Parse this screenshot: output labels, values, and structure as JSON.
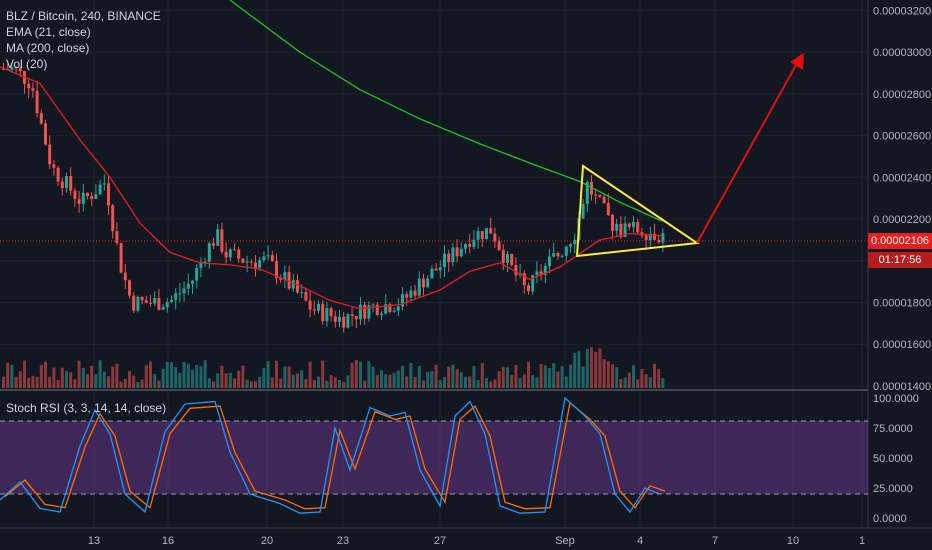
{
  "legend": {
    "symbol": "BLZ / Bitcoin, 240, BINANCE",
    "ema": "EMA (21, close)",
    "ma": "MA (200, close)",
    "vol": "Vol (20)"
  },
  "rsi_legend": "Stoch RSI (3, 3, 14, 14, close)",
  "current_price": "0.00002106",
  "countdown": "01:17:56",
  "colors": {
    "background": "#131722",
    "up": "#26a69a",
    "down": "#ef5350",
    "ema": "#e31e24",
    "ma": "#20c020",
    "triangle": "#ffeb3b",
    "arrow": "#e01010",
    "rsi_k": "#2196f3",
    "rsi_d": "#ff6d00",
    "rsi_band": "#7e3fa8"
  },
  "chart_data": [
    {
      "type": "candlestick",
      "title": "BLZ / Bitcoin, 240, BINANCE",
      "x_ticks": [
        "13",
        "16",
        "20",
        "23",
        "27",
        "Sep",
        "4",
        "7",
        "10",
        "1"
      ],
      "y_ticks": [
        "0.00003200",
        "0.00003000",
        "0.00002800",
        "0.00002600",
        "0.00002400",
        "0.00002200",
        "0.00002000",
        "0.00001800",
        "0.00001600",
        "0.00001400"
      ],
      "ylim": [
        1.39e-05,
        3.25e-05
      ],
      "ema21_approx": [
        2.95e-05,
        2.72e-05,
        2.4e-05,
        2.22e-05,
        2.05e-05,
        1.99e-05,
        1.96e-05,
        1.87e-05,
        1.8e-05,
        1.77e-05,
        1.82e-05,
        1.95e-05,
        2.01e-05,
        1.92e-05,
        2.04e-05,
        2.12e-05,
        2.14e-05,
        2.12e-05
      ],
      "ma200_approx": [
        3.45e-05,
        3.22e-05,
        3.01e-05,
        2.82e-05,
        2.67e-05,
        2.54e-05,
        2.44e-05,
        2.34e-05,
        2.26e-05,
        2.19e-05
      ],
      "annotations": [
        "symmetrical triangle",
        "upward arrow"
      ]
    },
    {
      "type": "line",
      "title": "Stoch RSI (3, 3, 14, 14, close)",
      "y_ticks": [
        "100.0000",
        "75.0000",
        "50.0000",
        "25.0000",
        "0.0000"
      ],
      "ylim": [
        0,
        100
      ],
      "band": [
        20,
        80
      ]
    }
  ]
}
